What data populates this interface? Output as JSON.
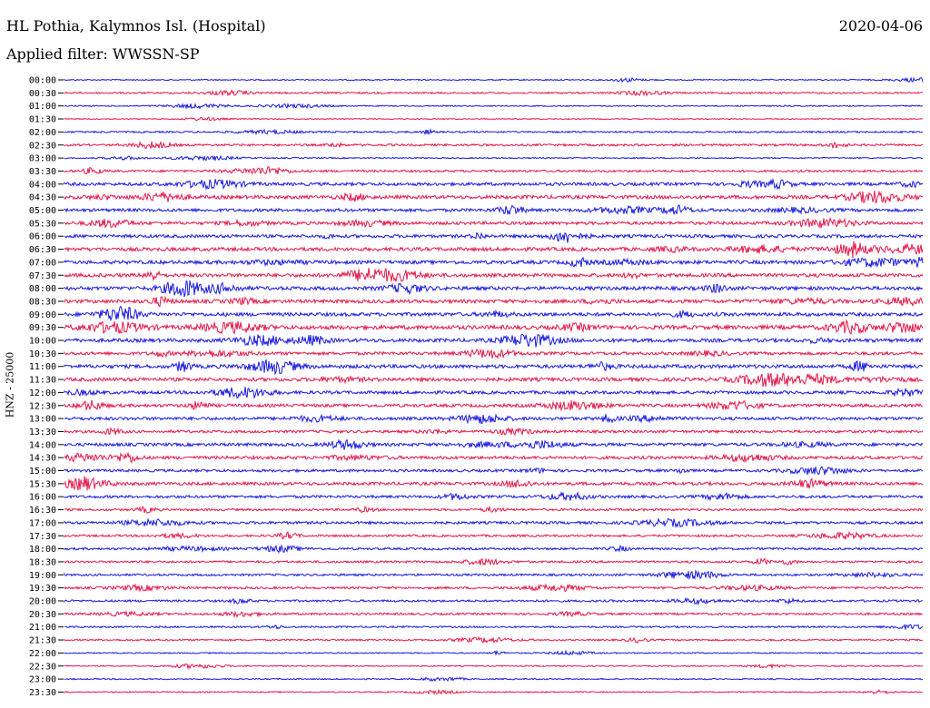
{
  "header": {
    "station": "HL Pothia, Kalymnos Isl. (Hospital)",
    "date": "2020-04-06",
    "filter": "Applied filter: WWSSN-SP"
  },
  "chart_data": {
    "type": "line",
    "chart_kind": "helicorder",
    "ylabel": "HNZ - 25000",
    "colors": {
      "even_rows": "#1a1ae6",
      "odd_rows": "#e6194b"
    },
    "rows": [
      "00:00",
      "00:30",
      "01:00",
      "01:30",
      "02:00",
      "02:30",
      "03:00",
      "03:30",
      "04:00",
      "04:30",
      "05:00",
      "05:30",
      "06:00",
      "06:30",
      "07:00",
      "07:30",
      "08:00",
      "08:30",
      "09:00",
      "09:30",
      "10:00",
      "10:30",
      "11:00",
      "11:30",
      "12:00",
      "12:30",
      "13:00",
      "13:30",
      "14:00",
      "14:30",
      "15:00",
      "15:30",
      "16:00",
      "16:30",
      "17:00",
      "17:30",
      "18:00",
      "18:30",
      "19:00",
      "19:30",
      "20:00",
      "20:30",
      "21:00",
      "21:30",
      "22:00",
      "22:30",
      "23:00",
      "23:30"
    ],
    "activity_level": [
      0.1,
      0.2,
      0.1,
      0.05,
      0.2,
      0.3,
      0.1,
      0.3,
      0.5,
      0.6,
      0.5,
      0.5,
      0.5,
      0.6,
      0.6,
      0.6,
      0.6,
      0.6,
      0.6,
      0.7,
      0.6,
      0.5,
      0.6,
      0.6,
      0.5,
      0.5,
      0.5,
      0.4,
      0.5,
      0.5,
      0.4,
      0.5,
      0.4,
      0.3,
      0.4,
      0.3,
      0.3,
      0.3,
      0.3,
      0.3,
      0.3,
      0.3,
      0.2,
      0.2,
      0.1,
      0.1,
      0.1,
      0.1
    ]
  }
}
